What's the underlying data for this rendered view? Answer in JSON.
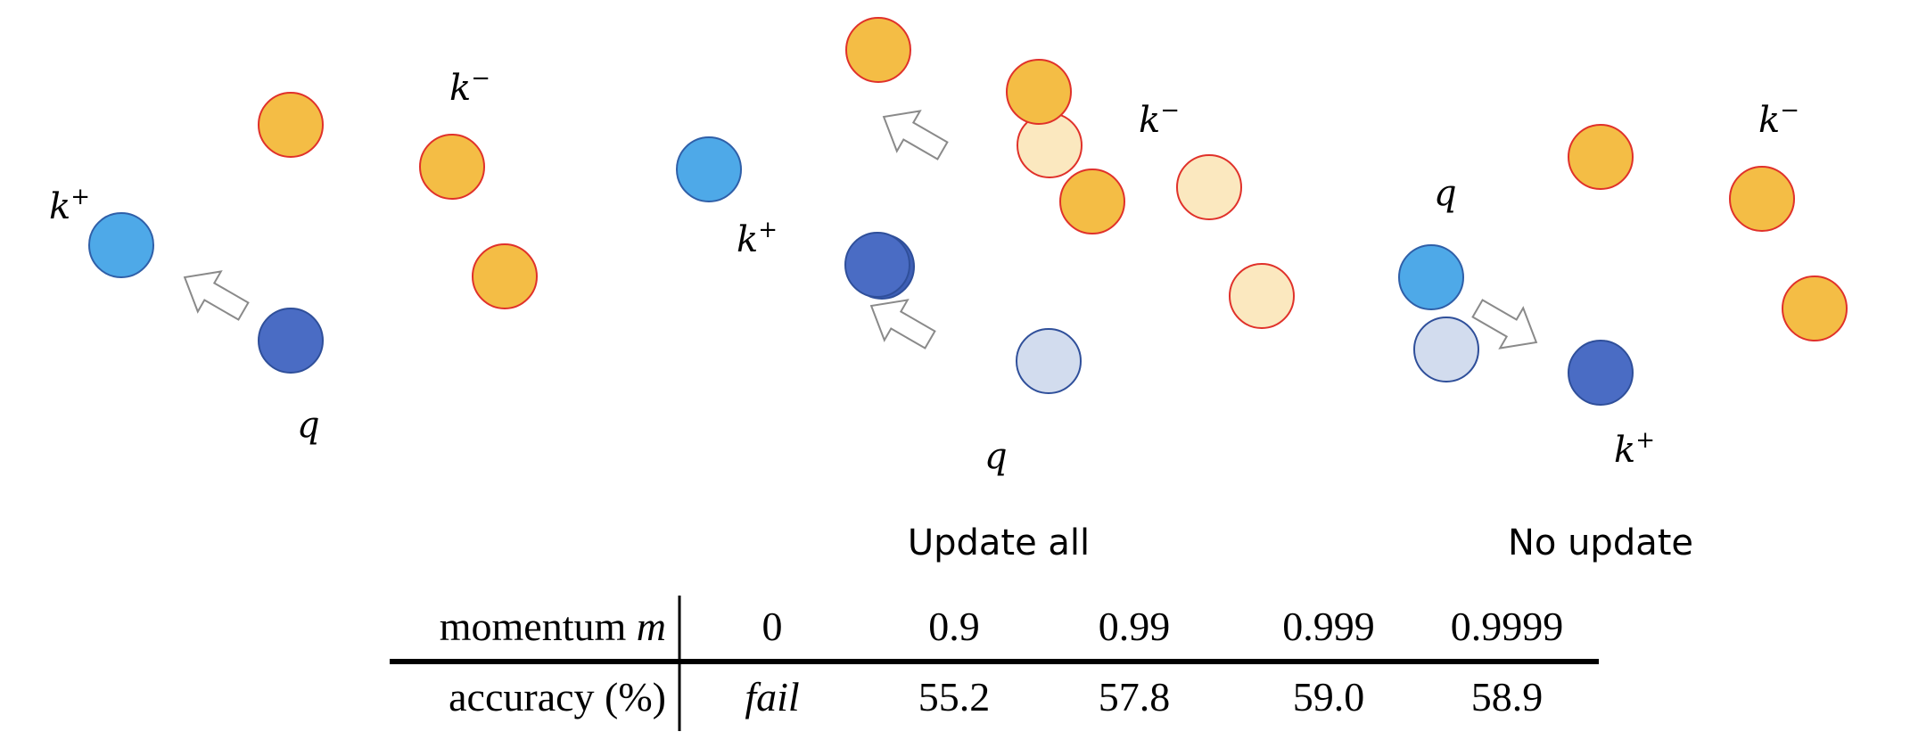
{
  "labels": {
    "k_minus": "k",
    "k_plus": "k",
    "minus_sup": "−",
    "plus_sup": "+",
    "q": "q"
  },
  "captions": {
    "middle": "Update all",
    "right": "No update"
  },
  "table": {
    "row1_label_text": "momentum ",
    "row1_label_var": "m",
    "row1_values": [
      "0",
      "0.9",
      "0.99",
      "0.999",
      "0.9999"
    ],
    "row2_label": "accuracy (%)",
    "row2_values": [
      "fail",
      "55.2",
      "57.8",
      "59.0",
      "58.9"
    ]
  },
  "colors": {
    "key_negative": "#f4bd45",
    "key_negative_faded": "#fbe8bf",
    "key_negative_stroke": "#e0312a",
    "key_positive": "#4ea9e8",
    "query": "#4a6cc4",
    "query_faded": "#d2dcee",
    "arrow_stroke": "#8a8a8a"
  }
}
